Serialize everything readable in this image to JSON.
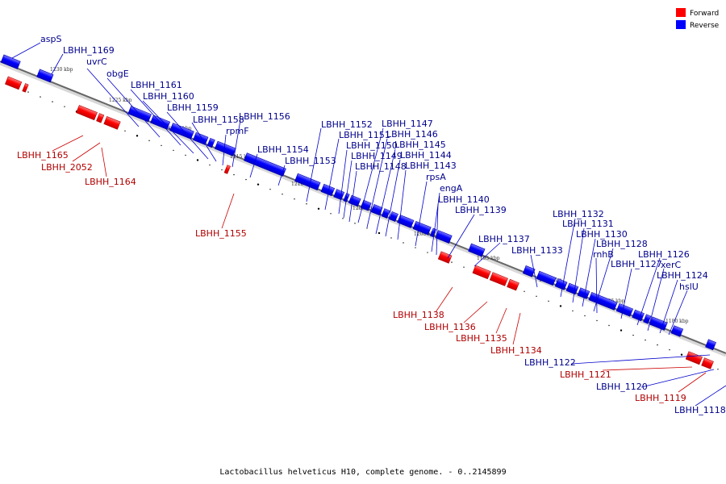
{
  "caption": "Lactobacillus helveticus H10, complete genome. - 0..2145899",
  "legend": [
    {
      "label": "Forward",
      "color": "#ff0000"
    },
    {
      "label": "Reverse",
      "color": "#0000ff"
    }
  ],
  "colors": {
    "forward": "#ff0000",
    "reverse": "#0000ff",
    "axis": "#777777"
  },
  "scale_ticks": [
    "1230 kbp",
    "1225 kbp",
    "1220 kbp",
    "1215 kbp",
    "1210 kbp",
    "1205 kbp",
    "1200 kbp",
    "1195 kbp",
    "1190 kbp",
    "1185 kbp",
    "1180 kbp"
  ],
  "reverse_genes": [
    "aspS",
    "LBHH_1169",
    "uvrC",
    "obgE",
    "LBHH_1161",
    "LBHH_1160",
    "LBHH_1159",
    "LBHH_1158",
    "rpmF",
    "LBHH_1156",
    "LBHH_1154",
    "LBHH_1153",
    "LBHH_1152",
    "LBHH_1151",
    "LBHH_1150",
    "LBHH_1149",
    "LBHH_1148",
    "LBHH_1147",
    "LBHH_1146",
    "LBHH_1145",
    "LBHH_1144",
    "LBHH_1143",
    "rpsA",
    "engA",
    "LBHH_1140",
    "LBHH_1139",
    "LBHH_1137",
    "LBHH_1133",
    "LBHH_1132",
    "LBHH_1131",
    "LBHH_1130",
    "LBHH_1128",
    "rnhB",
    "LBHH_1127",
    "LBHH_1126",
    "xerC",
    "LBHH_1124",
    "hslU",
    "LBHH_1122",
    "LBHH_1120",
    "LBHH_1118"
  ],
  "forward_genes": [
    "LBHH_1165",
    "LBHH_2052",
    "LBHH_1164",
    "LBHH_1155",
    "LBHH_1138",
    "LBHH_1136",
    "LBHH_1135",
    "LBHH_1134",
    "LBHH_1121",
    "LBHH_1119"
  ]
}
